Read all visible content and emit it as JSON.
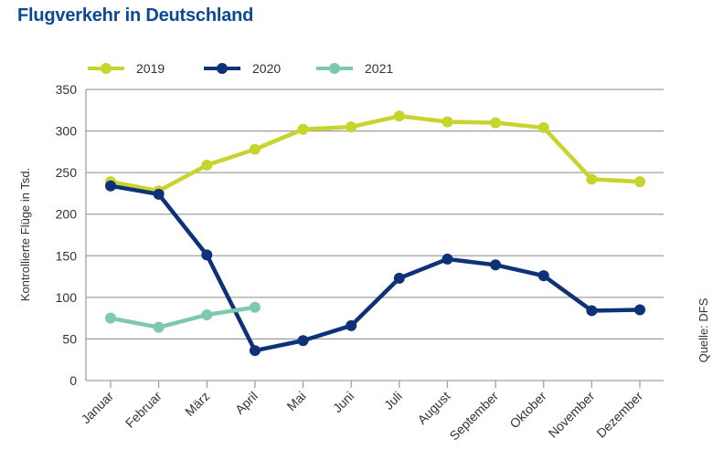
{
  "chart_data": {
    "type": "line",
    "title": "Flugverkehr in Deutschland",
    "xlabel": "",
    "ylabel": "Kontrollierte Flüge in Tsd.",
    "source": "Quelle: DFS",
    "ylim": [
      0,
      350
    ],
    "yticks": [
      0,
      50,
      100,
      150,
      200,
      250,
      300,
      350
    ],
    "grid": true,
    "legend_position": "top-left",
    "categories": [
      "Januar",
      "Februar",
      "März",
      "April",
      "Mai",
      "Juni",
      "Juli",
      "August",
      "September",
      "Oktober",
      "November",
      "Dezember"
    ],
    "series": [
      {
        "name": "2019",
        "color": "#c8d42e",
        "values": [
          239,
          228,
          259,
          278,
          302,
          305,
          318,
          311,
          310,
          304,
          242,
          239
        ]
      },
      {
        "name": "2020",
        "color": "#0d3278",
        "values": [
          234,
          224,
          151,
          36,
          48,
          66,
          123,
          146,
          139,
          126,
          84,
          85
        ]
      },
      {
        "name": "2021",
        "color": "#7fc8b0",
        "values": [
          75,
          64,
          79,
          88
        ]
      }
    ]
  }
}
